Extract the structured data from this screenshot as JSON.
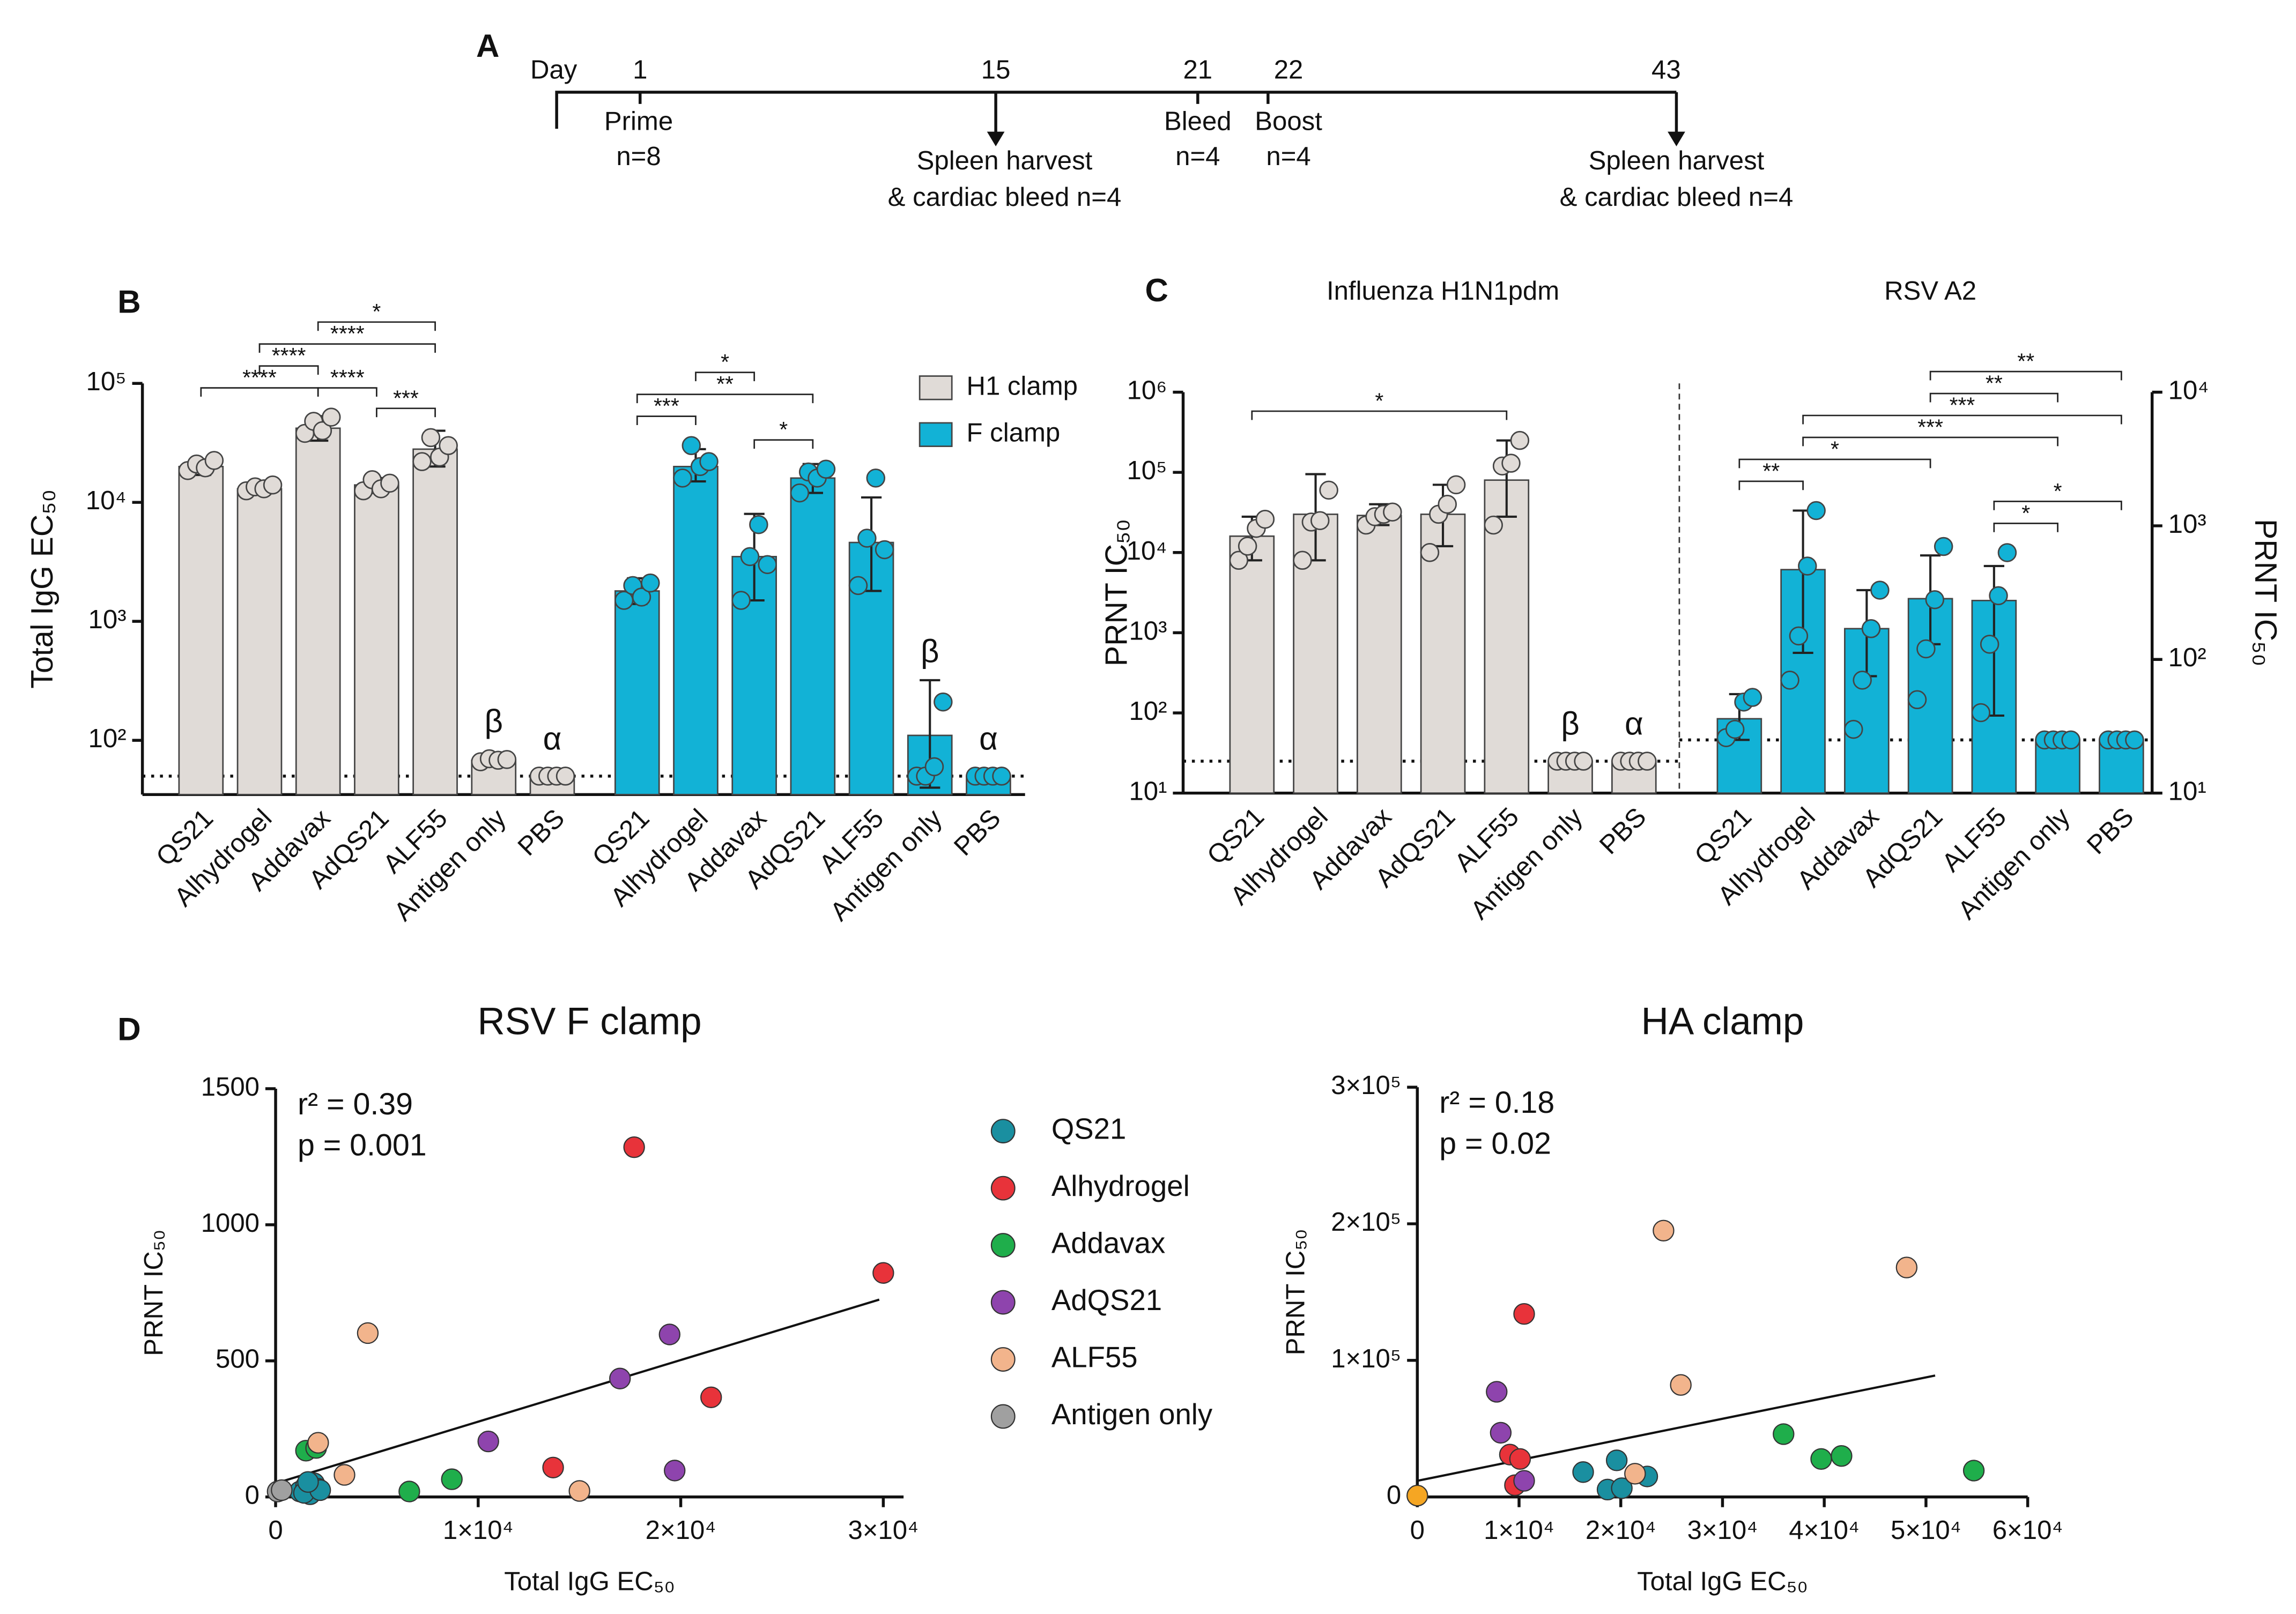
{
  "panel_labels": [
    "A",
    "B",
    "C",
    "D"
  ],
  "timeline": {
    "day_label": "Day",
    "events": [
      {
        "day": 1,
        "text": [
          "Prime",
          "n=8"
        ]
      },
      {
        "day": 15,
        "text": [
          "Spleen harvest",
          "& cardiac bleed n=4"
        ]
      },
      {
        "day": 21,
        "text": [
          "Bleed",
          "n=4"
        ]
      },
      {
        "day": 22,
        "text": [
          "Boost",
          "n=4"
        ]
      },
      {
        "day": 43,
        "text": [
          "Spleen harvest",
          "& cardiac bleed n=4"
        ]
      }
    ]
  },
  "chart_data": [
    {
      "type": "bar",
      "log": true,
      "ylabel": "Total IgG EC₅₀",
      "ylim": [
        35,
        100000
      ],
      "yticks": [
        {
          "value": 100,
          "label": "10²"
        },
        {
          "value": 1000,
          "label": "10³"
        },
        {
          "value": 10000,
          "label": "10⁴"
        },
        {
          "value": 100000,
          "label": "10⁵"
        }
      ],
      "categories": [
        "QS21",
        "Alhydrogel",
        "Addavax",
        "AdQS21",
        "ALF55",
        "Antigen only",
        "PBS",
        "QS21",
        "Alhydrogel",
        "Addavax",
        "AdQS21",
        "ALF55",
        "Antigen only",
        "PBS"
      ],
      "series": [
        {
          "name": "H1 clamp",
          "color": "#e0dbd7",
          "values": [
            20000,
            13000,
            42000,
            14000,
            28000,
            68,
            50,
            null,
            null,
            null,
            null,
            null,
            null,
            null
          ],
          "errors": [
            [
              17000,
              23000
            ],
            [
              12000,
              14500
            ],
            [
              33000,
              53000
            ],
            [
              12000,
              16000
            ],
            [
              20000,
              40000
            ],
            [
              62,
              74
            ],
            [
              50,
              50
            ],
            null,
            null,
            null,
            null,
            null,
            null,
            null
          ],
          "points": [
            [
              18500,
              21000,
              19500,
              22500
            ],
            [
              12500,
              13500,
              13000,
              14000
            ],
            [
              38000,
              48000,
              40000,
              52000
            ],
            [
              12500,
              15500,
              13000,
              14500
            ],
            [
              22000,
              35000,
              24000,
              30000
            ],
            [
              66,
              70,
              68,
              69
            ],
            [
              50,
              50,
              50,
              50
            ],
            null,
            null,
            null,
            null,
            null,
            null,
            null
          ]
        },
        {
          "name": "F clamp",
          "color": "#12b2d6",
          "values": [
            null,
            null,
            null,
            null,
            null,
            null,
            null,
            1800,
            20000,
            3500,
            16000,
            4600,
            110,
            50
          ],
          "errors": [
            null,
            null,
            null,
            null,
            null,
            null,
            null,
            [
              1400,
              2300
            ],
            [
              15000,
              28000
            ],
            [
              1500,
              8000
            ],
            [
              12000,
              21000
            ],
            [
              1800,
              11000
            ],
            [
              40,
              320
            ],
            [
              50,
              50
            ]
          ],
          "points": [
            null,
            null,
            null,
            null,
            null,
            null,
            null,
            [
              1500,
              2000,
              1600,
              2100
            ],
            [
              16000,
              30000,
              20000,
              22000
            ],
            [
              1500,
              3500,
              6500,
              3000
            ],
            [
              12000,
              18000,
              16000,
              19000
            ],
            [
              2000,
              5000,
              16000,
              4000
            ],
            [
              50,
              50,
              60,
              210
            ],
            [
              50,
              50,
              50,
              50
            ]
          ]
        }
      ],
      "reference_line": 50,
      "annotations": [
        {
          "category": 5,
          "text": "β"
        },
        {
          "category": 6,
          "text": "α"
        },
        {
          "category": 12,
          "text": "β"
        },
        {
          "category": 13,
          "text": "α"
        }
      ],
      "brackets": [
        {
          "from": 0,
          "to": 2,
          "label": "****"
        },
        {
          "from": 2,
          "to": 3,
          "label": "****"
        },
        {
          "from": 1,
          "to": 2,
          "label": "****"
        },
        {
          "from": 3,
          "to": 4,
          "label": "***"
        },
        {
          "from": 1,
          "to": 4,
          "label": "****"
        },
        {
          "from": 2,
          "to": 4,
          "label": "*"
        },
        {
          "from": 7,
          "to": 8,
          "label": "***"
        },
        {
          "from": 9,
          "to": 10,
          "label": "*"
        },
        {
          "from": 7,
          "to": 10,
          "label": "**"
        },
        {
          "from": 8,
          "to": 9,
          "label": "*"
        }
      ],
      "legend": "upper right"
    },
    {
      "type": "bar",
      "log": true,
      "title": "Influenza H1N1pdm",
      "ylabel": "PRNT IC₅₀",
      "ylim": [
        10,
        1000000
      ],
      "yticks": [
        {
          "value": 10,
          "label": "10¹"
        },
        {
          "value": 100,
          "label": "10²"
        },
        {
          "value": 1000,
          "label": "10³"
        },
        {
          "value": 10000,
          "label": "10⁴"
        },
        {
          "value": 100000,
          "label": "10⁵"
        },
        {
          "value": 1000000,
          "label": "10⁶"
        }
      ],
      "categories": [
        "QS21",
        "Alhydrogel",
        "Addavax",
        "AdQS21",
        "ALF55",
        "Antigen only",
        "PBS"
      ],
      "series": [
        {
          "color": "#e0dbd7",
          "values": [
            16000,
            30000,
            29000,
            30000,
            80000,
            25,
            25
          ],
          "errors": [
            [
              8000,
              28000
            ],
            [
              8000,
              95000
            ],
            [
              22000,
              40000
            ],
            [
              12000,
              70000
            ],
            [
              28000,
              250000
            ],
            [
              25,
              25
            ],
            [
              25,
              25
            ]
          ],
          "points": [
            [
              8000,
              12000,
              20000,
              26000
            ],
            [
              8000,
              24000,
              25000,
              60000
            ],
            [
              22000,
              28000,
              30000,
              32000
            ],
            [
              10000,
              30000,
              40000,
              70000
            ],
            [
              22000,
              120000,
              130000,
              250000
            ],
            [
              25,
              25,
              25,
              25
            ],
            [
              25,
              25,
              25,
              25
            ]
          ]
        }
      ],
      "reference_line": 25,
      "annotations": [
        {
          "category": 5,
          "text": "β"
        },
        {
          "category": 6,
          "text": "α"
        }
      ],
      "brackets": [
        {
          "from": 0,
          "to": 4,
          "label": "*"
        }
      ]
    },
    {
      "type": "bar",
      "log": true,
      "title": "RSV A2",
      "y2label": "PRNT IC₅₀",
      "y2lim": [
        10,
        10000
      ],
      "y2ticks": [
        {
          "value": 10,
          "label": "10¹"
        },
        {
          "value": 100,
          "label": "10²"
        },
        {
          "value": 1000,
          "label": "10³"
        },
        {
          "value": 10000,
          "label": "10⁴"
        }
      ],
      "categories": [
        "QS21",
        "Alhydrogel",
        "Addavax",
        "AdQS21",
        "ALF55",
        "Antigen only",
        "PBS"
      ],
      "series": [
        {
          "color": "#12b2d6",
          "axis": "y2",
          "values": [
            36,
            470,
            170,
            285,
            276,
            25,
            25
          ],
          "errors": [
            [
              25,
              55
            ],
            [
              112,
              1300
            ],
            [
              75,
              330
            ],
            [
              130,
              600
            ],
            [
              38,
              500
            ],
            [
              25,
              25
            ],
            [
              25,
              25
            ]
          ],
          "points": [
            [
              26,
              30,
              48,
              52
            ],
            [
              70,
              150,
              500,
              1300
            ],
            [
              30,
              70,
              170,
              330
            ],
            [
              50,
              120,
              280,
              700
            ],
            [
              40,
              130,
              300,
              630
            ],
            [
              25,
              25,
              25,
              25
            ],
            [
              25,
              25,
              25,
              25
            ]
          ]
        }
      ],
      "reference_line": 25,
      "brackets": [
        {
          "from": 4,
          "to": 5,
          "label": "*"
        },
        {
          "from": 4,
          "to": 6,
          "label": "*"
        },
        {
          "from": 0,
          "to": 1,
          "label": "**"
        },
        {
          "from": 0,
          "to": 3,
          "label": "*"
        },
        {
          "from": 1,
          "to": 5,
          "label": "***"
        },
        {
          "from": 1,
          "to": 6,
          "label": "***"
        },
        {
          "from": 3,
          "to": 5,
          "label": "**"
        },
        {
          "from": 3,
          "to": 6,
          "label": "**"
        }
      ]
    },
    {
      "type": "scatter",
      "title": "RSV F clamp",
      "xlabel": "Total IgG EC₅₀",
      "ylabel": "PRNT IC₅₀",
      "xlim": [
        0,
        31000
      ],
      "xticks": [
        0,
        {
          "value": 10000,
          "label": "1×10⁴"
        },
        {
          "value": 20000,
          "label": "2×10⁴"
        },
        {
          "value": 30000,
          "label": "3×10⁴"
        }
      ],
      "ylim": [
        0,
        1500
      ],
      "yticks": [
        0,
        500,
        1000,
        1500
      ],
      "annotations": [
        "r² = 0.39",
        "p = 0.001"
      ],
      "fit": {
        "x": [
          0,
          29800
        ],
        "y": [
          50,
          725
        ]
      },
      "legend": "right",
      "series": [
        {
          "name": "QS21",
          "color": "#1a8fa0",
          "x": [
            1200,
            1500,
            1700,
            1900,
            2100,
            1400,
            2200,
            1600
          ],
          "y": [
            20,
            40,
            10,
            50,
            30,
            15,
            25,
            55
          ]
        },
        {
          "name": "Alhydrogel",
          "color": "#e8333a",
          "x": [
            17700,
            30000,
            21500,
            13700
          ],
          "y": [
            1285,
            823,
            366,
            108
          ]
        },
        {
          "name": "Addavax",
          "color": "#1fae4b",
          "x": [
            1500,
            2000,
            6600,
            8700
          ],
          "y": [
            170,
            180,
            20,
            65
          ]
        },
        {
          "name": "AdQS21",
          "color": "#8e44ad",
          "x": [
            19450,
            17000,
            10500,
            19700
          ],
          "y": [
            597,
            435,
            204,
            97
          ]
        },
        {
          "name": "ALF55",
          "color": "#f2b48c",
          "x": [
            4550,
            3400,
            2100,
            15000
          ],
          "y": [
            602,
            81,
            199,
            22
          ]
        },
        {
          "name": "Antigen only",
          "color": "#a0a0a0",
          "x": [
            100,
            300
          ],
          "y": [
            20,
            25
          ]
        }
      ]
    },
    {
      "type": "scatter",
      "title": "HA clamp",
      "xlabel": "Total IgG EC₅₀",
      "ylabel": "PRNT IC₅₀",
      "xlim": [
        0,
        60000
      ],
      "xticks": [
        0,
        {
          "value": 10000,
          "label": "1×10⁴"
        },
        {
          "value": 20000,
          "label": "2×10⁴"
        },
        {
          "value": 30000,
          "label": "3×10⁴"
        },
        {
          "value": 40000,
          "label": "4×10⁴"
        },
        {
          "value": 50000,
          "label": "5×10⁴"
        },
        {
          "value": 60000,
          "label": "6×10⁴"
        }
      ],
      "ylim": [
        0,
        300000
      ],
      "yticks": [
        0,
        {
          "value": 100000,
          "label": "1×10⁵"
        },
        {
          "value": 200000,
          "label": "2×10⁵"
        },
        {
          "value": 300000,
          "label": "3×10⁵"
        }
      ],
      "annotations": [
        "r² = 0.18",
        "p = 0.02"
      ],
      "fit": {
        "x": [
          0,
          50900
        ],
        "y": [
          11800,
          88900
        ]
      },
      "series": [
        {
          "color": "#1a8fa0",
          "x": [
            18700,
            16300,
            19600,
            22600,
            20100
          ],
          "y": [
            5400,
            18200,
            26800,
            15000,
            6400
          ]
        },
        {
          "color": "#e8333a",
          "x": [
            10500,
            9100,
            10100,
            9600
          ],
          "y": [
            134000,
            31000,
            27800,
            8600
          ]
        },
        {
          "color": "#1fae4b",
          "x": [
            36000,
            39700,
            41700,
            54700
          ],
          "y": [
            46000,
            27800,
            30000,
            19300
          ]
        },
        {
          "color": "#8e44ad",
          "x": [
            7800,
            8200,
            10500
          ],
          "y": [
            77000,
            47000,
            11800
          ]
        },
        {
          "color": "#f2b48c",
          "x": [
            24200,
            48100,
            25900,
            21400
          ],
          "y": [
            195000,
            168000,
            82000,
            17000
          ]
        },
        {
          "color": "#f5a623",
          "x": [
            0
          ],
          "y": [
            1000
          ]
        }
      ]
    }
  ]
}
